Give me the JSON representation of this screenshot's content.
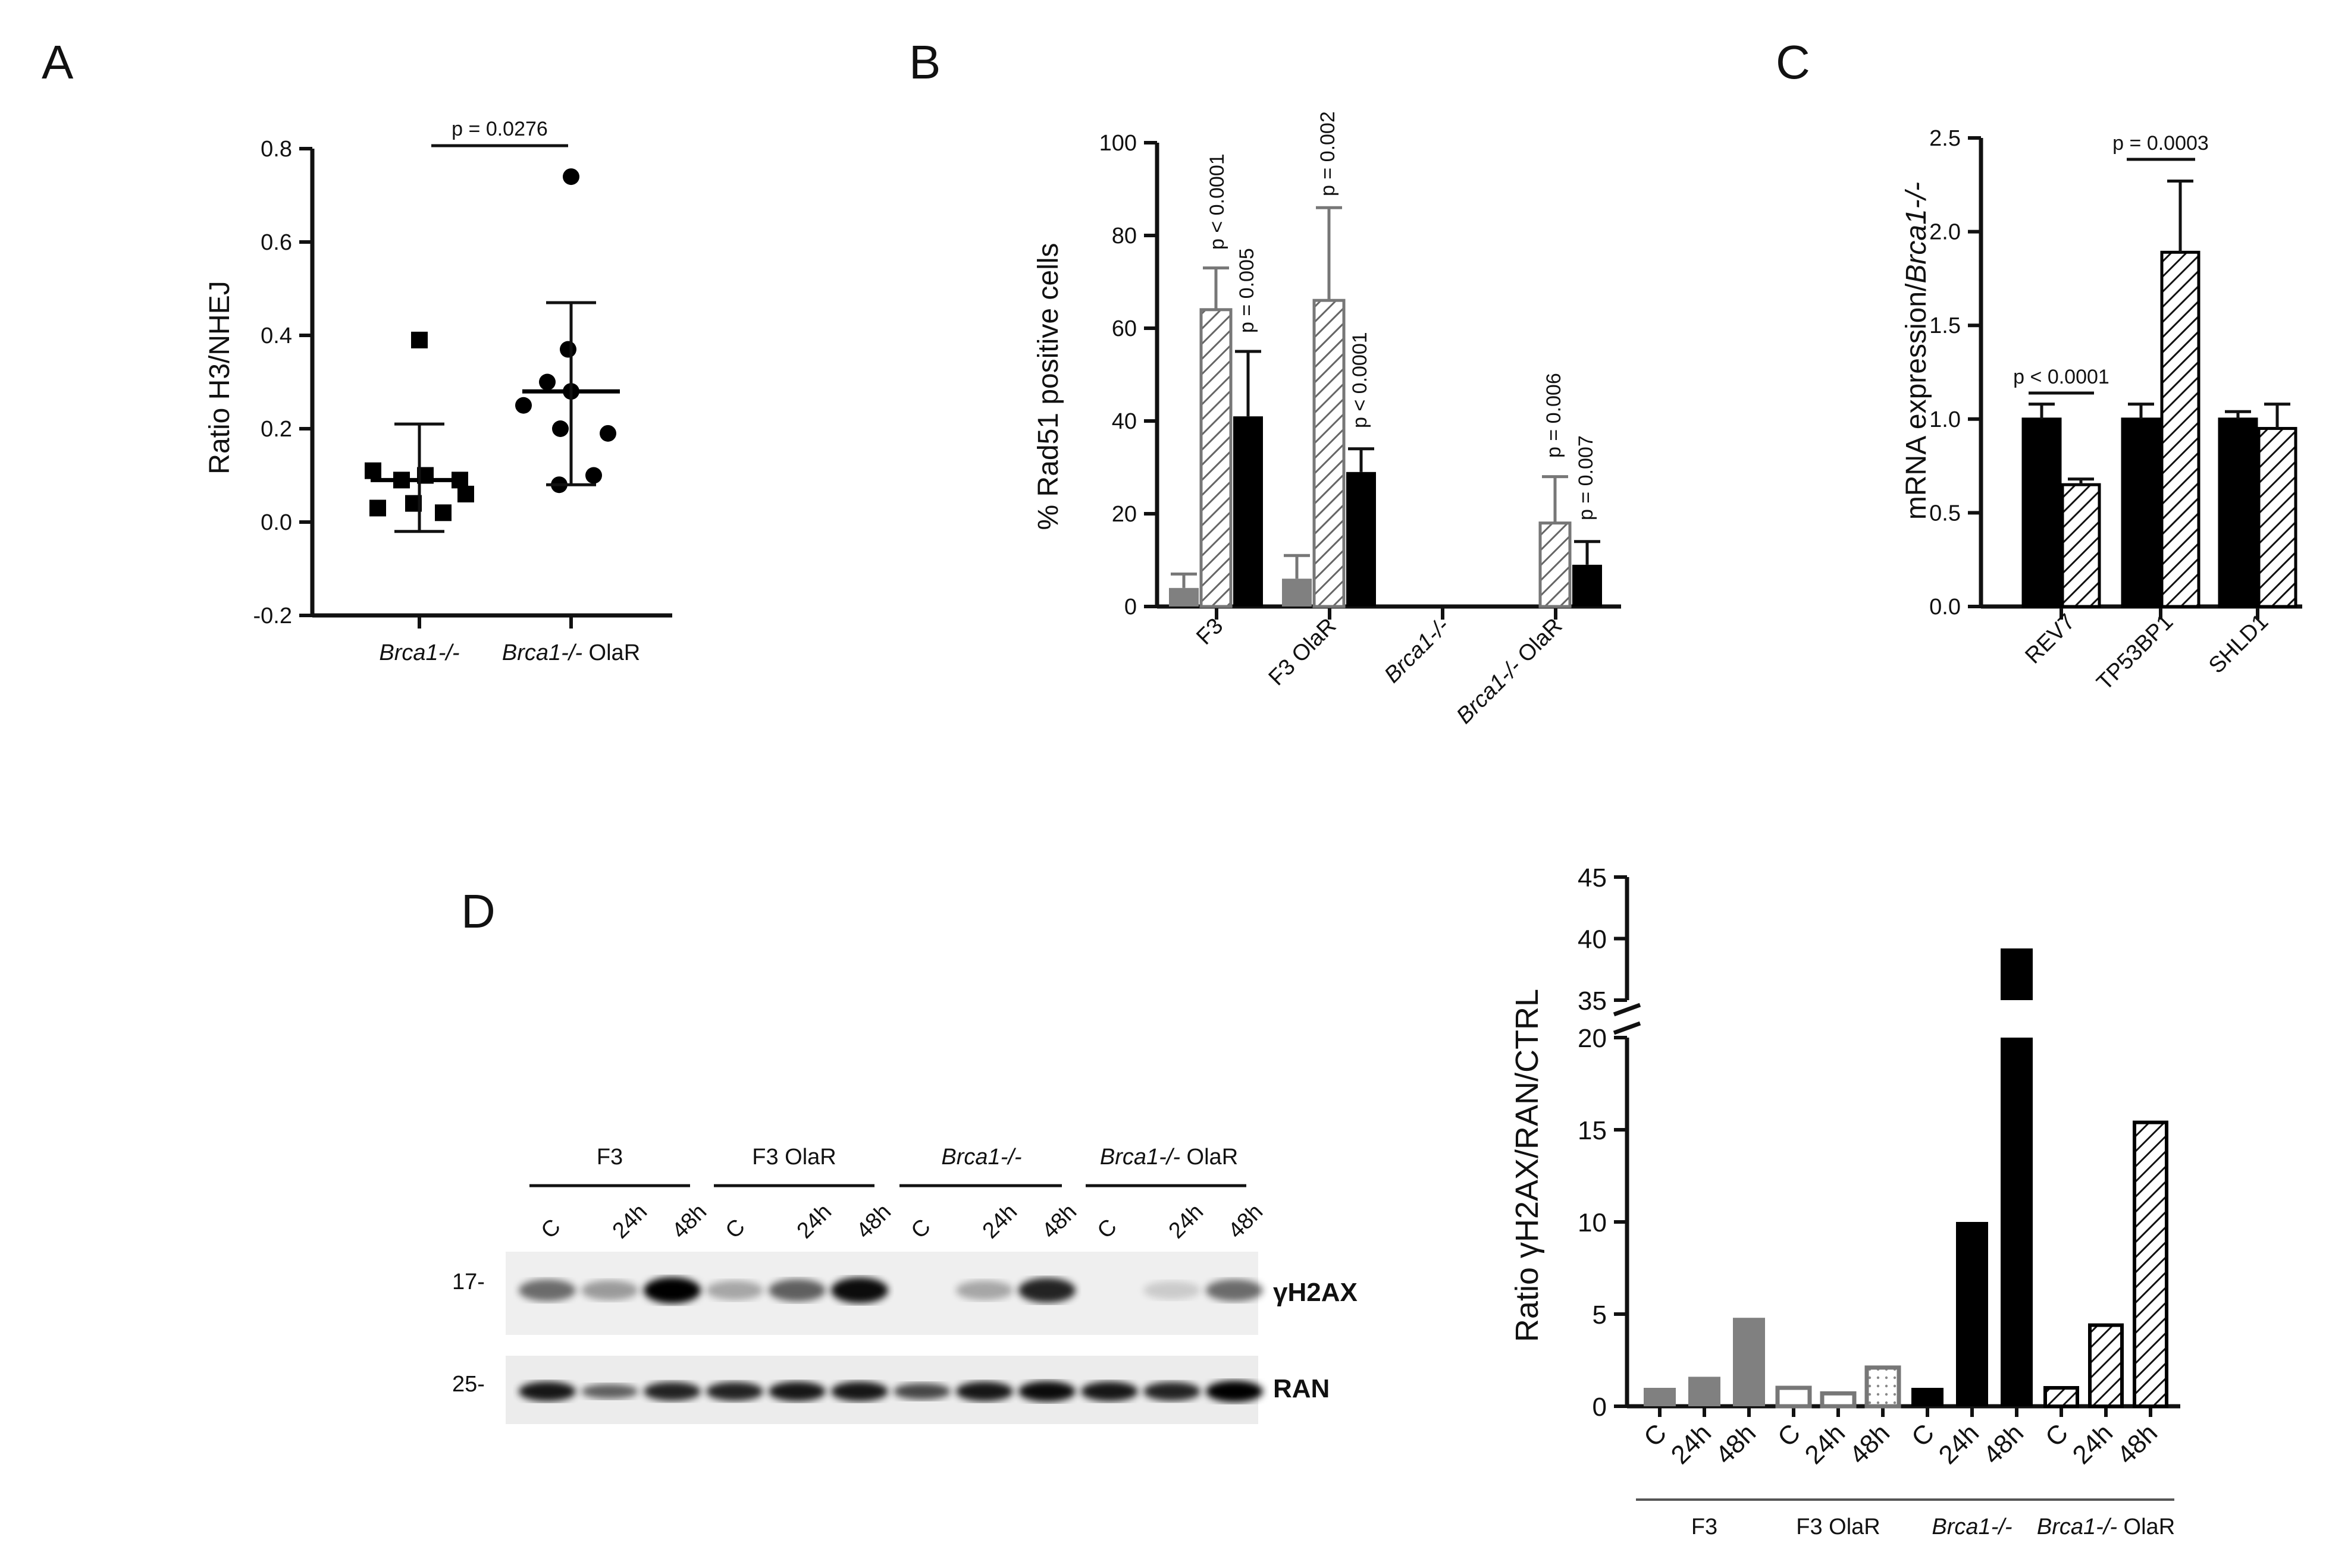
{
  "panels": {
    "a": "A",
    "b": "B",
    "c": "C",
    "d": "D"
  },
  "colors": {
    "black": "#000000",
    "gray": "#808080",
    "white": "#ffffff"
  },
  "chart_data": [
    {
      "panel": "A",
      "type": "scatter",
      "ylabel": "Ratio H3/NHEJ",
      "ylim": [
        -0.2,
        0.8
      ],
      "yticks": [
        "0.8",
        "0.6",
        "0.4",
        "0.2",
        "0.0",
        "-0.2"
      ],
      "groups": [
        {
          "label": "Brca1-/-",
          "marker": "square",
          "values": [
            0.39,
            0.11,
            0.1,
            0.09,
            0.09,
            0.06,
            0.04,
            0.03,
            0.02
          ],
          "mean": 0.09,
          "sd_low": -0.02,
          "sd_high": 0.21
        },
        {
          "label": "Brca1-/- OlaR",
          "marker": "circle",
          "values": [
            0.74,
            0.37,
            0.3,
            0.28,
            0.25,
            0.2,
            0.19,
            0.1,
            0.08
          ],
          "mean": 0.28,
          "sd_low": 0.08,
          "sd_high": 0.47
        }
      ],
      "annotations": [
        {
          "text": "p = 0.0276"
        }
      ]
    },
    {
      "panel": "B",
      "type": "bar",
      "ylabel": "% Rad51 positive cells",
      "ylim": [
        0,
        100
      ],
      "yticks": [
        "0",
        "20",
        "40",
        "60",
        "80",
        "100"
      ],
      "categories": [
        "F3",
        "F3 OlaR",
        "Brca1-/-",
        "Brca1-/- OlaR"
      ],
      "series": [
        {
          "fill": "gray",
          "values": [
            4,
            6,
            0,
            0
          ],
          "errors": [
            3,
            5,
            0,
            0
          ]
        },
        {
          "fill": "hatched",
          "values": [
            64,
            66,
            0,
            18
          ],
          "errors": [
            9,
            20,
            0,
            10
          ]
        },
        {
          "fill": "black",
          "values": [
            41,
            29,
            0,
            9
          ],
          "errors": [
            14,
            5,
            0,
            5
          ]
        }
      ],
      "annotations": [
        "p < 0.0001",
        "p = 0.005",
        "p = 0.002",
        "p < 0.0001",
        "p = 0.006",
        "p = 0.007"
      ]
    },
    {
      "panel": "C",
      "type": "bar",
      "ylabel": "mRNA expression/Brca1-/-",
      "ylim": [
        0,
        2.5
      ],
      "yticks": [
        "2.5",
        "2.0",
        "1.5",
        "1.0",
        "0.5",
        "0.0"
      ],
      "categories": [
        "REV7",
        "TP53BP1",
        "SHLD1"
      ],
      "series": [
        {
          "fill": "black",
          "values": [
            1.0,
            1.0,
            1.0
          ],
          "errors": [
            0.08,
            0.08,
            0.04
          ]
        },
        {
          "fill": "hatched",
          "values": [
            0.65,
            1.89,
            0.95
          ],
          "errors": [
            0.03,
            0.38,
            0.13
          ]
        }
      ],
      "annotations": [
        "p < 0.0001",
        "p = 0.0003"
      ]
    },
    {
      "panel": "D",
      "type": "bar",
      "ylabel": "Ratio γH2AX/RAN/CTRL",
      "axis_break": [
        20,
        35
      ],
      "yticks": [
        "0",
        "5",
        "10",
        "15",
        "20",
        "35",
        "40",
        "45"
      ],
      "groups": [
        "F3",
        "F3 OlaR",
        "Brca1-/-",
        "Brca1-/- OlaR"
      ],
      "tick_labels": [
        "C",
        "24h",
        "48h"
      ],
      "values": [
        [
          1.0,
          1.6,
          4.8
        ],
        [
          1.0,
          0.7,
          2.1
        ],
        [
          1.0,
          10.0,
          39.2
        ],
        [
          1.0,
          4.4,
          15.4
        ]
      ],
      "fills": [
        "gray",
        "outline",
        "black",
        "hatched"
      ]
    }
  ],
  "blot": {
    "groups": [
      "F3",
      "F3 OlaR",
      "Brca1-/-",
      "Brca1-/- OlaR"
    ],
    "lanes": [
      "C",
      "24h",
      "48h"
    ],
    "markers": [
      "17-",
      "25-"
    ],
    "proteins": [
      "γH2AX",
      "RAN"
    ]
  }
}
